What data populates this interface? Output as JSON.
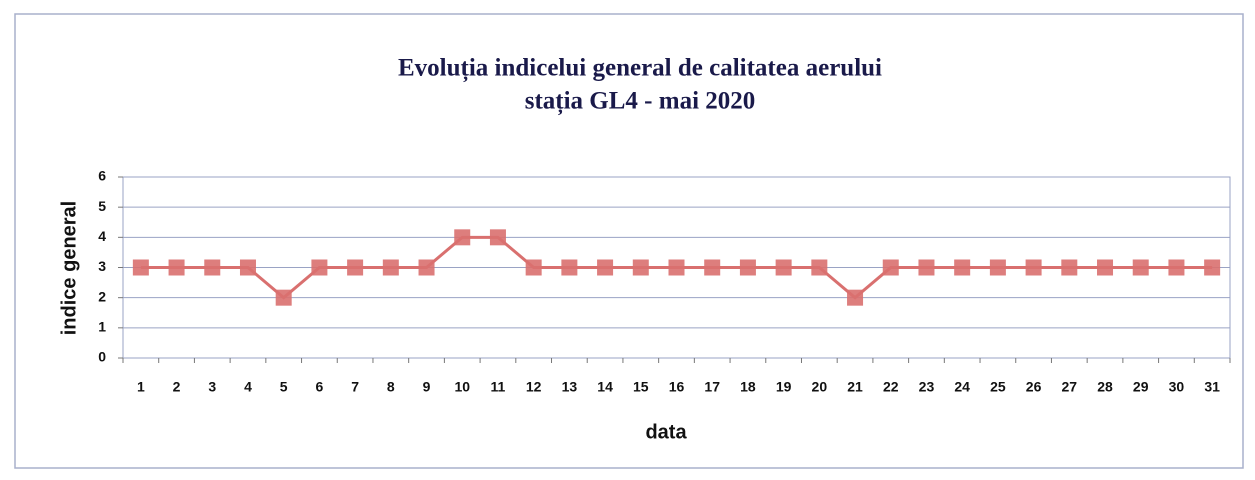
{
  "chart_data": {
    "type": "line",
    "title": "Evoluția indicelui general de calitatea aerului",
    "subtitle": "stația GL4 - mai 2020",
    "x_label": "data",
    "y_label": "indice general",
    "categories": [
      "1",
      "2",
      "3",
      "4",
      "5",
      "6",
      "7",
      "8",
      "9",
      "10",
      "11",
      "12",
      "13",
      "14",
      "15",
      "16",
      "17",
      "18",
      "19",
      "20",
      "21",
      "22",
      "23",
      "24",
      "25",
      "26",
      "27",
      "28",
      "29",
      "30",
      "31"
    ],
    "series": [
      {
        "color": "#d9706f",
        "values": [
          3,
          3,
          3,
          3,
          2,
          3,
          3,
          3,
          3,
          4,
          4,
          3,
          3,
          3,
          3,
          3,
          3,
          3,
          3,
          3,
          2,
          3,
          3,
          3,
          3,
          3,
          3,
          3,
          3,
          3,
          3
        ]
      }
    ],
    "ylim": [
      0,
      6
    ],
    "yticks": [
      0,
      1,
      2,
      3,
      4,
      5,
      6
    ],
    "grid": true
  }
}
